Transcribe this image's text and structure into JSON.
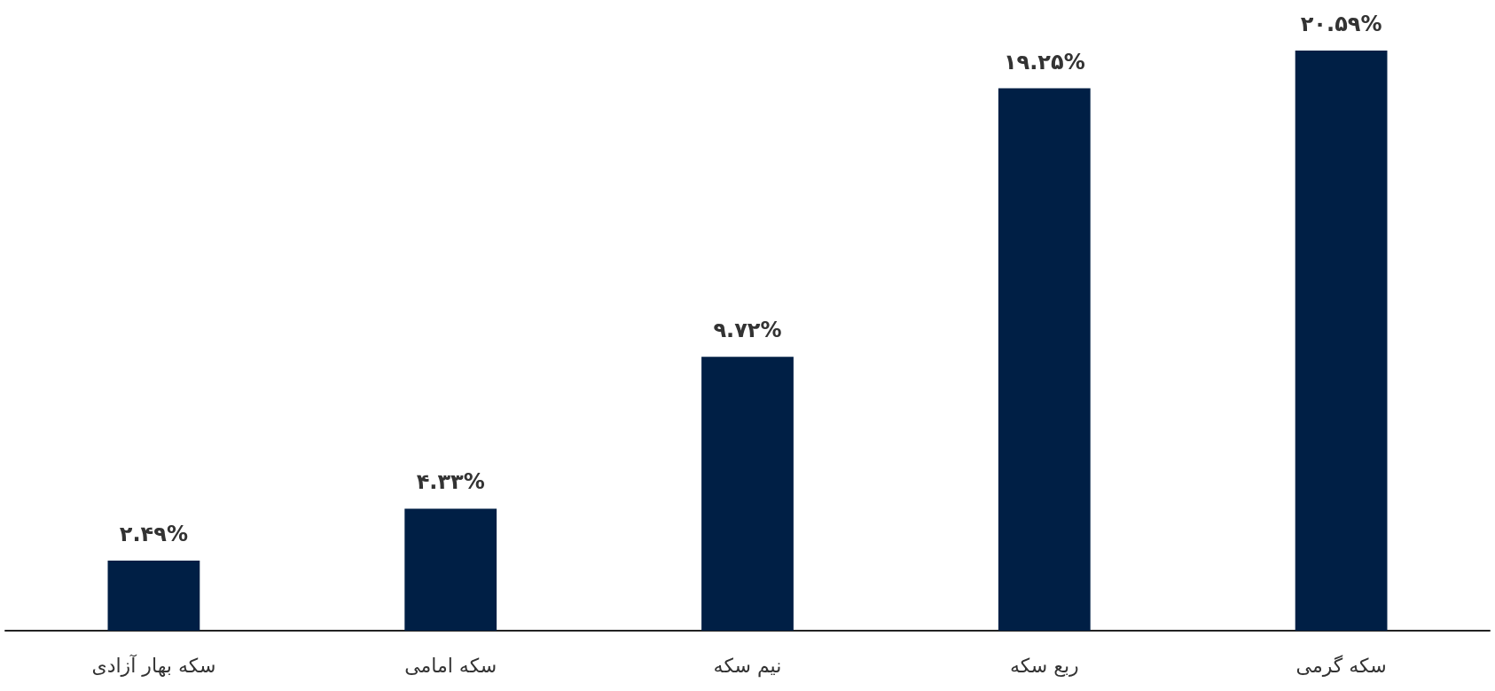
{
  "chart_data": {
    "type": "bar",
    "categories": [
      "سکه بهار آزادی",
      "سکه امامی",
      "نیم سکه",
      "ربع سکه",
      "سکه گرمی"
    ],
    "values": [
      2.49,
      4.33,
      9.72,
      19.25,
      20.59
    ],
    "value_labels": [
      "۲.۴۹%",
      "۴.۳۳%",
      "۹.۷۲%",
      "۱۹.۲۵%",
      "۲۰.۵۹%"
    ],
    "color": "#001f45"
  }
}
